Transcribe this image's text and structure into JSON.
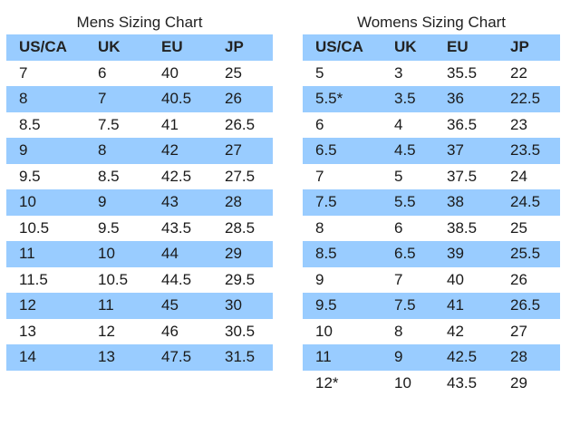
{
  "mens": {
    "title": "Mens Sizing Chart",
    "headers": [
      "US/CA",
      "UK",
      "EU",
      "JP"
    ],
    "rows": [
      [
        "7",
        "6",
        "40",
        "25"
      ],
      [
        "8",
        "7",
        "40.5",
        "26"
      ],
      [
        "8.5",
        "7.5",
        "41",
        "26.5"
      ],
      [
        "9",
        "8",
        "42",
        "27"
      ],
      [
        "9.5",
        "8.5",
        "42.5",
        "27.5"
      ],
      [
        "10",
        "9",
        "43",
        "28"
      ],
      [
        "10.5",
        "9.5",
        "43.5",
        "28.5"
      ],
      [
        "11",
        "10",
        "44",
        "29"
      ],
      [
        "11.5",
        "10.5",
        "44.5",
        "29.5"
      ],
      [
        "12",
        "11",
        "45",
        "30"
      ],
      [
        "13",
        "12",
        "46",
        "30.5"
      ],
      [
        "14",
        "13",
        "47.5",
        "31.5"
      ]
    ]
  },
  "womens": {
    "title": "Womens Sizing Chart",
    "headers": [
      "US/CA",
      "UK",
      "EU",
      "JP"
    ],
    "rows": [
      [
        "5",
        "3",
        "35.5",
        "22"
      ],
      [
        "5.5*",
        "3.5",
        "36",
        "22.5"
      ],
      [
        "6",
        "4",
        "36.5",
        "23"
      ],
      [
        "6.5",
        "4.5",
        "37",
        "23.5"
      ],
      [
        "7",
        "5",
        "37.5",
        "24"
      ],
      [
        "7.5",
        "5.5",
        "38",
        "24.5"
      ],
      [
        "8",
        "6",
        "38.5",
        "25"
      ],
      [
        "8.5",
        "6.5",
        "39",
        "25.5"
      ],
      [
        "9",
        "7",
        "40",
        "26"
      ],
      [
        "9.5",
        "7.5",
        "41",
        "26.5"
      ],
      [
        "10",
        "8",
        "42",
        "27"
      ],
      [
        "11",
        "9",
        "42.5",
        "28"
      ],
      [
        "12*",
        "10",
        "43.5",
        "29"
      ]
    ]
  },
  "colors": {
    "band": "#99ccff",
    "background": "#ffffff",
    "text": "#1a1a1a"
  }
}
